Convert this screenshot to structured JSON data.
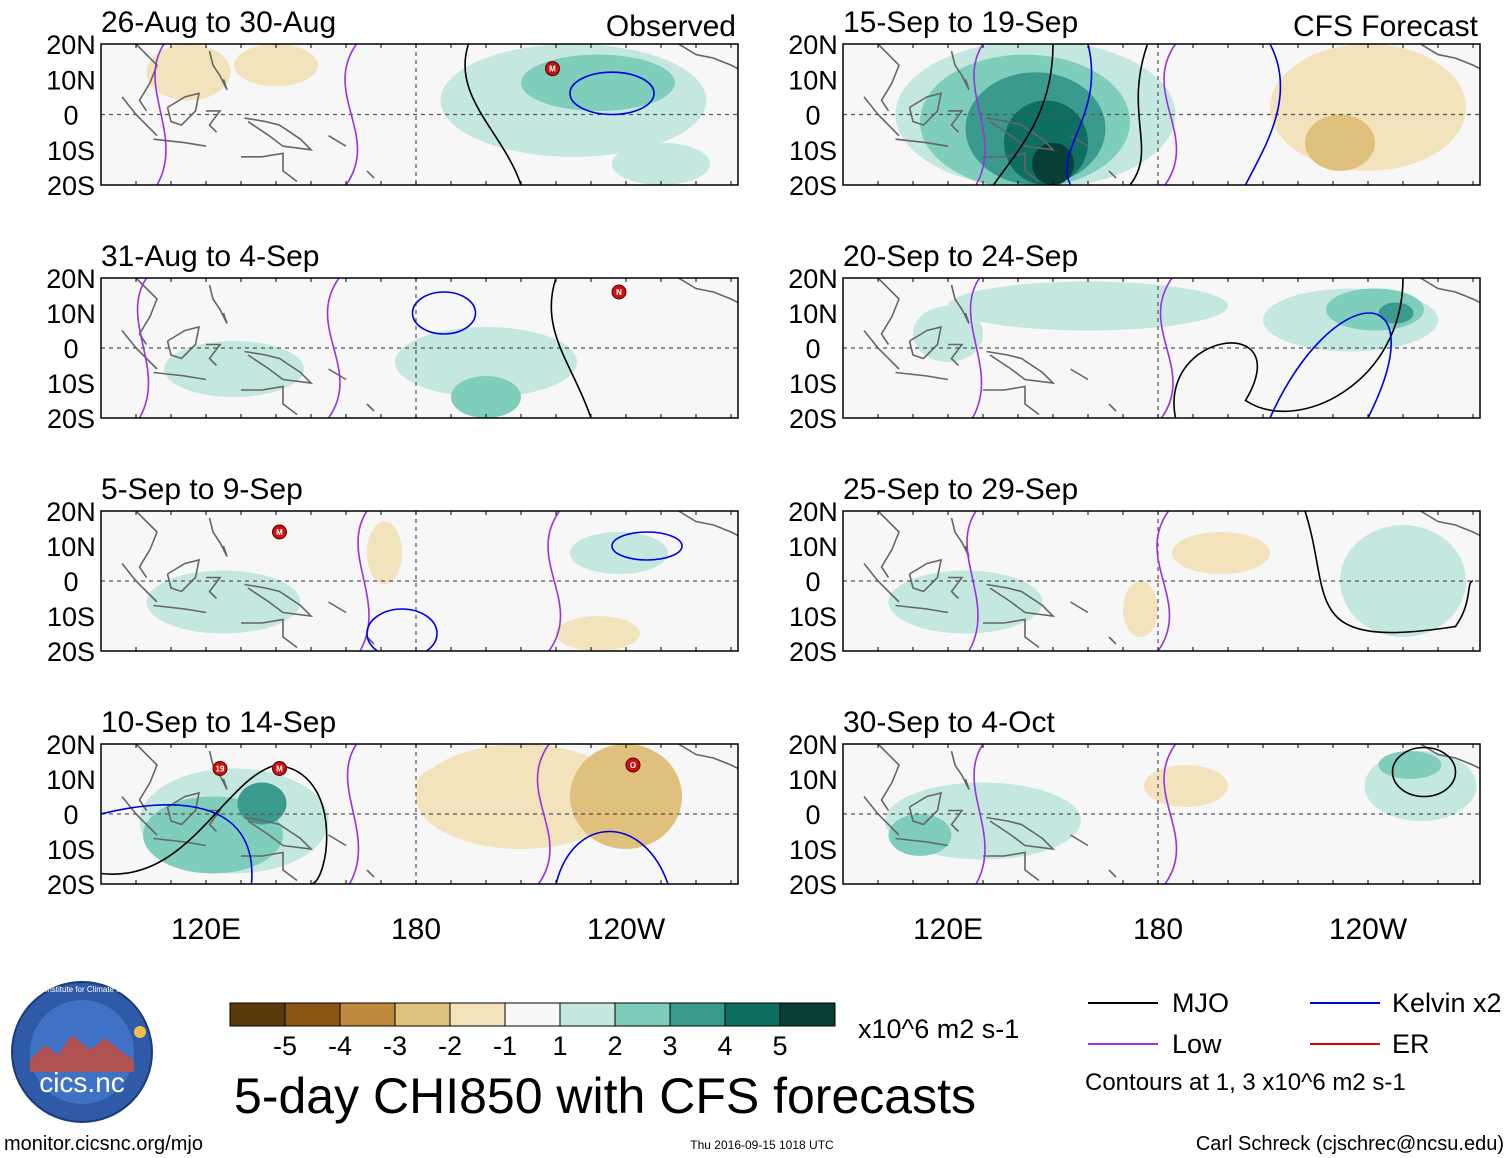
{
  "figure": {
    "title": "5-day CHI850 with CFS forecasts",
    "url": "monitor.cicsnc.org/mjo",
    "timestamp": "Thu 2016-09-15 1018 UTC",
    "author": "Carl Schreck (cjschrec@ncsu.edu)",
    "logo_text": "cics.nc",
    "logo_ring_text": "Cooperative Institute for Climate and Satellites"
  },
  "colors": {
    "brown5": "#5a3a0a",
    "brown4": "#8a5714",
    "brown3": "#c08a3c",
    "brown2": "#dfc07c",
    "brown1": "#f2e3bd",
    "neutral": "#f7f7f7",
    "teal1": "#c4e8e0",
    "teal2": "#7fcdbb",
    "teal3": "#3a9a8e",
    "teal4": "#0e6e62",
    "teal5": "#073f37",
    "mjo": "#000000",
    "low": "#9933dd",
    "kelvin": "#0000dd",
    "er": "#dd0000",
    "coast": "#666666"
  },
  "lat_labels": [
    "20N",
    "10N",
    "0",
    "10S",
    "20S"
  ],
  "lon_labels": [
    "120E",
    "180",
    "120W"
  ],
  "panels": [
    {
      "period": "26-Aug to 30-Aug",
      "tag": "Observed",
      "storms": [
        {
          "letter": "M",
          "lon": -141,
          "lat": 13
        }
      ],
      "blobs": [
        {
          "shade": "teal1",
          "lon": -135,
          "lat": 4,
          "rlon": 38,
          "rlat": 16
        },
        {
          "shade": "teal2",
          "lon": -128,
          "lat": 9,
          "rlon": 22,
          "rlat": 8
        },
        {
          "shade": "teal1",
          "lon": -110,
          "lat": -14,
          "rlon": 14,
          "rlat": 6
        },
        {
          "shade": "brown1",
          "lon": 140,
          "lat": 14,
          "rlon": 12,
          "rlat": 6
        },
        {
          "shade": "brown1",
          "lon": 115,
          "lat": 12,
          "rlon": 12,
          "rlat": 8
        }
      ]
    },
    {
      "period": "31-Aug to 4-Sep",
      "tag": "",
      "storms": [
        {
          "letter": "N",
          "lon": -122,
          "lat": 16
        }
      ],
      "blobs": [
        {
          "shade": "teal1",
          "lon": -160,
          "lat": -4,
          "rlon": 26,
          "rlat": 10
        },
        {
          "shade": "teal2",
          "lon": -160,
          "lat": -14,
          "rlon": 10,
          "rlat": 6
        },
        {
          "shade": "teal1",
          "lon": 128,
          "lat": -6,
          "rlon": 20,
          "rlat": 8
        }
      ]
    },
    {
      "period": "5-Sep to 9-Sep",
      "tag": "",
      "storms": [
        {
          "letter": "M",
          "lon": 141,
          "lat": 14
        }
      ],
      "blobs": [
        {
          "shade": "teal1",
          "lon": 125,
          "lat": -6,
          "rlon": 22,
          "rlat": 9
        },
        {
          "shade": "teal1",
          "lon": -122,
          "lat": 8,
          "rlon": 14,
          "rlat": 6
        },
        {
          "shade": "brown1",
          "lon": -128,
          "lat": -15,
          "rlon": 12,
          "rlat": 5
        },
        {
          "shade": "brown1",
          "lon": 171,
          "lat": 8,
          "rlon": 5,
          "rlat": 9
        }
      ]
    },
    {
      "period": "10-Sep to 14-Sep",
      "tag": "",
      "storms": [
        {
          "letter": "19",
          "lon": 124,
          "lat": 13
        },
        {
          "letter": "M",
          "lon": 141,
          "lat": 13
        },
        {
          "letter": "O",
          "lon": -118,
          "lat": 14
        }
      ],
      "blobs": [
        {
          "shade": "teal1",
          "lon": 128,
          "lat": -2,
          "rlon": 27,
          "rlat": 15
        },
        {
          "shade": "teal2",
          "lon": 122,
          "lat": -6,
          "rlon": 20,
          "rlat": 11
        },
        {
          "shade": "teal3",
          "lon": 136,
          "lat": 3,
          "rlon": 7,
          "rlat": 6
        },
        {
          "shade": "brown1",
          "lon": -150,
          "lat": 5,
          "rlon": 30,
          "rlat": 15
        },
        {
          "shade": "brown2",
          "lon": -120,
          "lat": 5,
          "rlon": 16,
          "rlat": 15
        },
        {
          "shade": "brown1",
          "lon": -170,
          "lat": 8,
          "rlon": 10,
          "rlat": 6
        }
      ]
    },
    {
      "period": "15-Sep to 19-Sep",
      "tag": "CFS Forecast",
      "storms": [],
      "blobs": [
        {
          "shade": "teal1",
          "lon": 145,
          "lat": 0,
          "rlon": 40,
          "rlat": 21
        },
        {
          "shade": "teal2",
          "lon": 142,
          "lat": -2,
          "rlon": 30,
          "rlat": 19
        },
        {
          "shade": "teal3",
          "lon": 145,
          "lat": -4,
          "rlon": 20,
          "rlat": 16
        },
        {
          "shade": "teal4",
          "lon": 148,
          "lat": -8,
          "rlon": 12,
          "rlat": 12
        },
        {
          "shade": "teal5",
          "lon": 150,
          "lat": -14,
          "rlon": 6,
          "rlat": 6
        },
        {
          "shade": "brown1",
          "lon": -120,
          "lat": 2,
          "rlon": 28,
          "rlat": 18
        },
        {
          "shade": "brown2",
          "lon": -128,
          "lat": -8,
          "rlon": 10,
          "rlat": 8
        }
      ]
    },
    {
      "period": "20-Sep to 24-Sep",
      "tag": "",
      "storms": [],
      "blobs": [
        {
          "shade": "teal1",
          "lon": 160,
          "lat": 12,
          "rlon": 40,
          "rlat": 7
        },
        {
          "shade": "teal1",
          "lon": -125,
          "lat": 8,
          "rlon": 25,
          "rlat": 9
        },
        {
          "shade": "teal2",
          "lon": -118,
          "lat": 11,
          "rlon": 14,
          "rlat": 6
        },
        {
          "shade": "teal3",
          "lon": -112,
          "lat": 10,
          "rlon": 5,
          "rlat": 3
        },
        {
          "shade": "teal1",
          "lon": 120,
          "lat": 4,
          "rlon": 10,
          "rlat": 8
        }
      ]
    },
    {
      "period": "25-Sep to 29-Sep",
      "tag": "",
      "storms": [],
      "blobs": [
        {
          "shade": "teal1",
          "lon": 125,
          "lat": -6,
          "rlon": 22,
          "rlat": 9
        },
        {
          "shade": "teal1",
          "lon": -110,
          "lat": 0,
          "rlon": 18,
          "rlat": 16
        },
        {
          "shade": "brown1",
          "lon": -162,
          "lat": 8,
          "rlon": 14,
          "rlat": 6
        },
        {
          "shade": "brown1",
          "lon": 175,
          "lat": -8,
          "rlon": 5,
          "rlat": 8
        }
      ]
    },
    {
      "period": "30-Sep to 4-Oct",
      "tag": "",
      "storms": [],
      "blobs": [
        {
          "shade": "teal1",
          "lon": 130,
          "lat": -2,
          "rlon": 28,
          "rlat": 11
        },
        {
          "shade": "teal2",
          "lon": 112,
          "lat": -6,
          "rlon": 9,
          "rlat": 6
        },
        {
          "shade": "teal1",
          "lon": -105,
          "lat": 8,
          "rlon": 16,
          "rlat": 10
        },
        {
          "shade": "teal2",
          "lon": -108,
          "lat": 14,
          "rlon": 9,
          "rlat": 4
        },
        {
          "shade": "brown1",
          "lon": -172,
          "lat": 8,
          "rlon": 12,
          "rlat": 6
        }
      ]
    }
  ],
  "colorbar": {
    "colors": [
      "#5a3a0a",
      "#8a5714",
      "#c08a3c",
      "#dfc07c",
      "#f2e3bd",
      "#f7f7f7",
      "#c4e8e0",
      "#7fcdbb",
      "#3a9a8e",
      "#0e6e62",
      "#073f37"
    ],
    "labels": [
      "-5",
      "-4",
      "-3",
      "-2",
      "-1",
      "1",
      "2",
      "3",
      "4",
      "5"
    ],
    "units": "x10^6 m2 s-1"
  },
  "legend": {
    "items": [
      {
        "label": "MJO",
        "color": "#000000"
      },
      {
        "label": "Kelvin x2",
        "color": "#0000dd"
      },
      {
        "label": "Low",
        "color": "#9933dd"
      },
      {
        "label": "ER",
        "color": "#dd0000"
      }
    ],
    "note": "Contours at 1, 3 x10^6 m2 s-1"
  }
}
